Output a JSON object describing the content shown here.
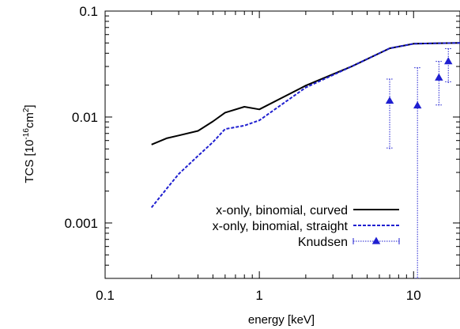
{
  "chart_data": {
    "type": "line",
    "xscale": "log",
    "yscale": "log",
    "xlim": [
      0.1,
      20
    ],
    "ylim": [
      0.0003,
      0.1
    ],
    "xlabel": "energy [keV]",
    "ylabel": {
      "base": "TCS [10",
      "exp1": "-16",
      "mid": "cm",
      "exp2": "2",
      "end": "]"
    },
    "grid": false,
    "legend_position": "bottom-right",
    "xticks": [
      {
        "value": 0.1,
        "label": "0.1"
      },
      {
        "value": 1,
        "label": "1"
      },
      {
        "value": 10,
        "label": "10"
      }
    ],
    "yticks": [
      {
        "value": 0.001,
        "label": "0.001"
      },
      {
        "value": 0.01,
        "label": "0.01"
      },
      {
        "value": 0.1,
        "label": "0.1"
      }
    ],
    "series": [
      {
        "name": "x-only, binomial, curved",
        "color": "#000000",
        "style": "solid",
        "x": [
          0.2,
          0.25,
          0.3,
          0.4,
          0.5,
          0.6,
          0.8,
          1.0,
          2.0,
          4.0,
          7.0,
          10.0,
          15.0,
          20.0
        ],
        "y": [
          0.0055,
          0.0063,
          0.0067,
          0.0074,
          0.0091,
          0.011,
          0.0125,
          0.0118,
          0.0198,
          0.0302,
          0.0445,
          0.0492,
          0.0498,
          0.05
        ]
      },
      {
        "name": "x-only, binomial, straight",
        "color": "#1f1fd0",
        "style": "dashed",
        "x": [
          0.2,
          0.25,
          0.3,
          0.4,
          0.5,
          0.6,
          0.8,
          1.0,
          2.0,
          4.0,
          7.0,
          10.0,
          15.0,
          20.0
        ],
        "y": [
          0.0014,
          0.0021,
          0.0029,
          0.0043,
          0.0058,
          0.0077,
          0.0083,
          0.0093,
          0.019,
          0.0302,
          0.0445,
          0.0492,
          0.0498,
          0.05
        ]
      },
      {
        "name": "Knudsen",
        "color": "#1f1fd0",
        "style": "points-errorbars",
        "marker": "triangle-up",
        "points": [
          {
            "x": 7.0,
            "y": 0.0142,
            "ylow": 0.0051,
            "yhigh": 0.0228
          },
          {
            "x": 10.6,
            "y": 0.0128,
            "ylow": 0.0003,
            "yhigh": 0.0292
          },
          {
            "x": 14.6,
            "y": 0.0235,
            "ylow": 0.013,
            "yhigh": 0.0335
          },
          {
            "x": 16.8,
            "y": 0.0335,
            "ylow": 0.0215,
            "yhigh": 0.0442
          }
        ]
      }
    ]
  }
}
